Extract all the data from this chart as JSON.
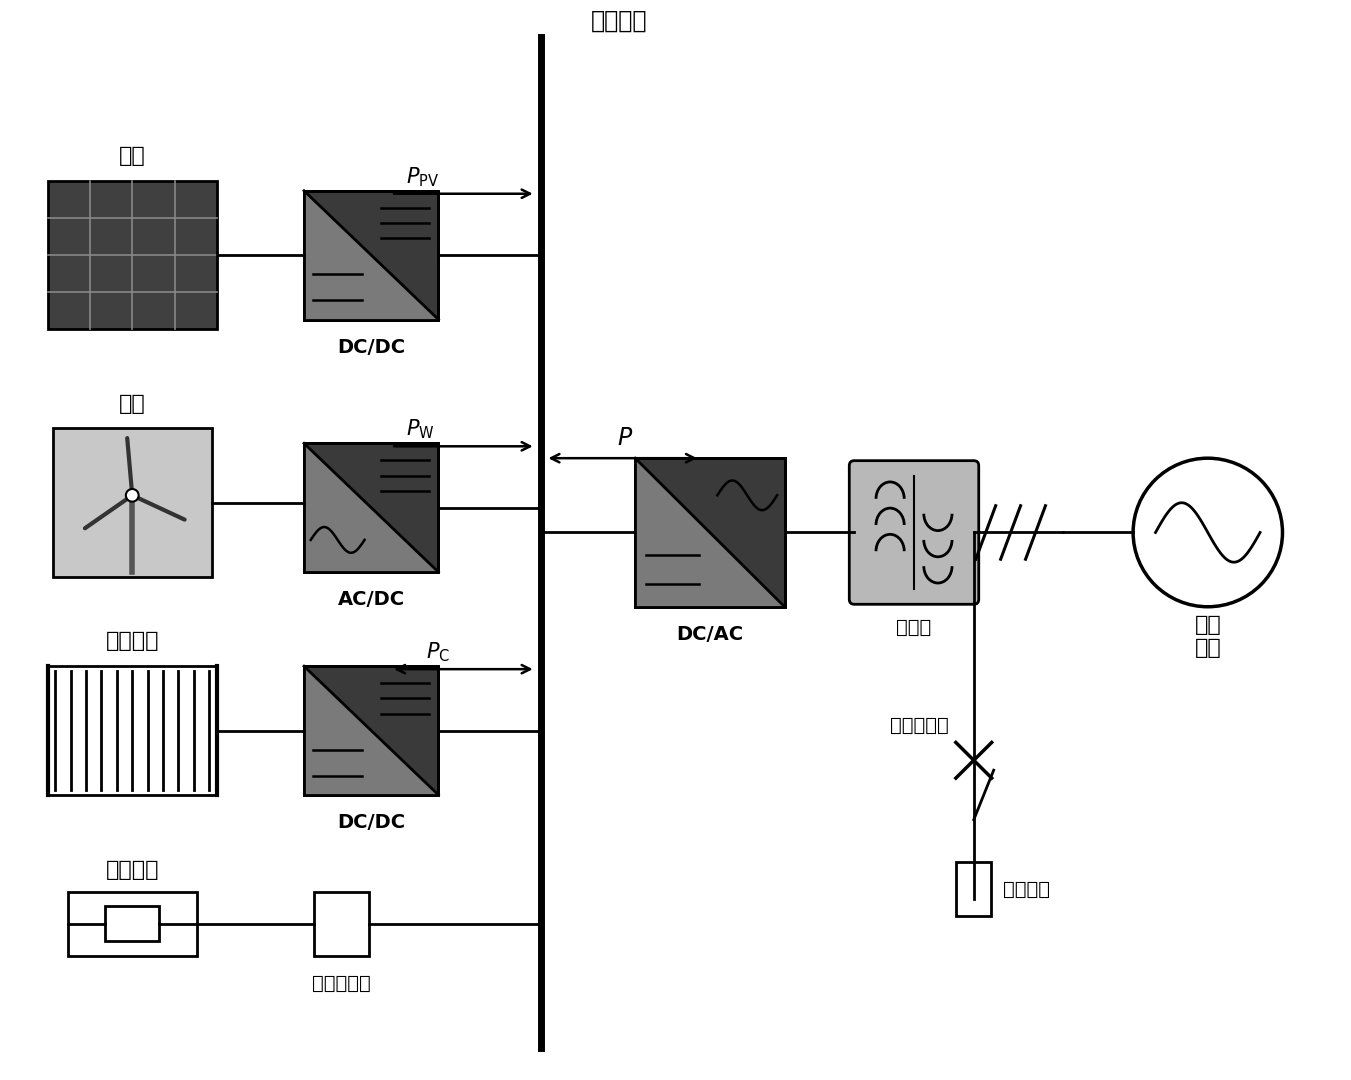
{
  "bg_color": "#ffffff",
  "black": "#000000",
  "white": "#ffffff",
  "dark_conv": "#3a3a3a",
  "light_conv": "#7a7a7a",
  "transformer_bg": "#c0c0c0",
  "wind_bg": "#d0d0d0",
  "dc_bus_label": "直流母线",
  "pv_label": "光伏",
  "wind_label": "风机",
  "sc_label": "超级电容",
  "dc_load_label": "直流负荷",
  "dcdc1_label": "DC/DC",
  "acdc_label": "AC/DC",
  "dcdc2_label": "DC/DC",
  "dcac_label": "DC/AC",
  "transformer_label": "变压器",
  "ac_breaker_label": "交流断路器",
  "dc_breaker_label": "直流断路器",
  "ac_load_label": "交流负荷",
  "ac_grid_label": "交流\n主网",
  "font_size_label": 16,
  "font_size_eq": 14,
  "font_size_bus": 17
}
